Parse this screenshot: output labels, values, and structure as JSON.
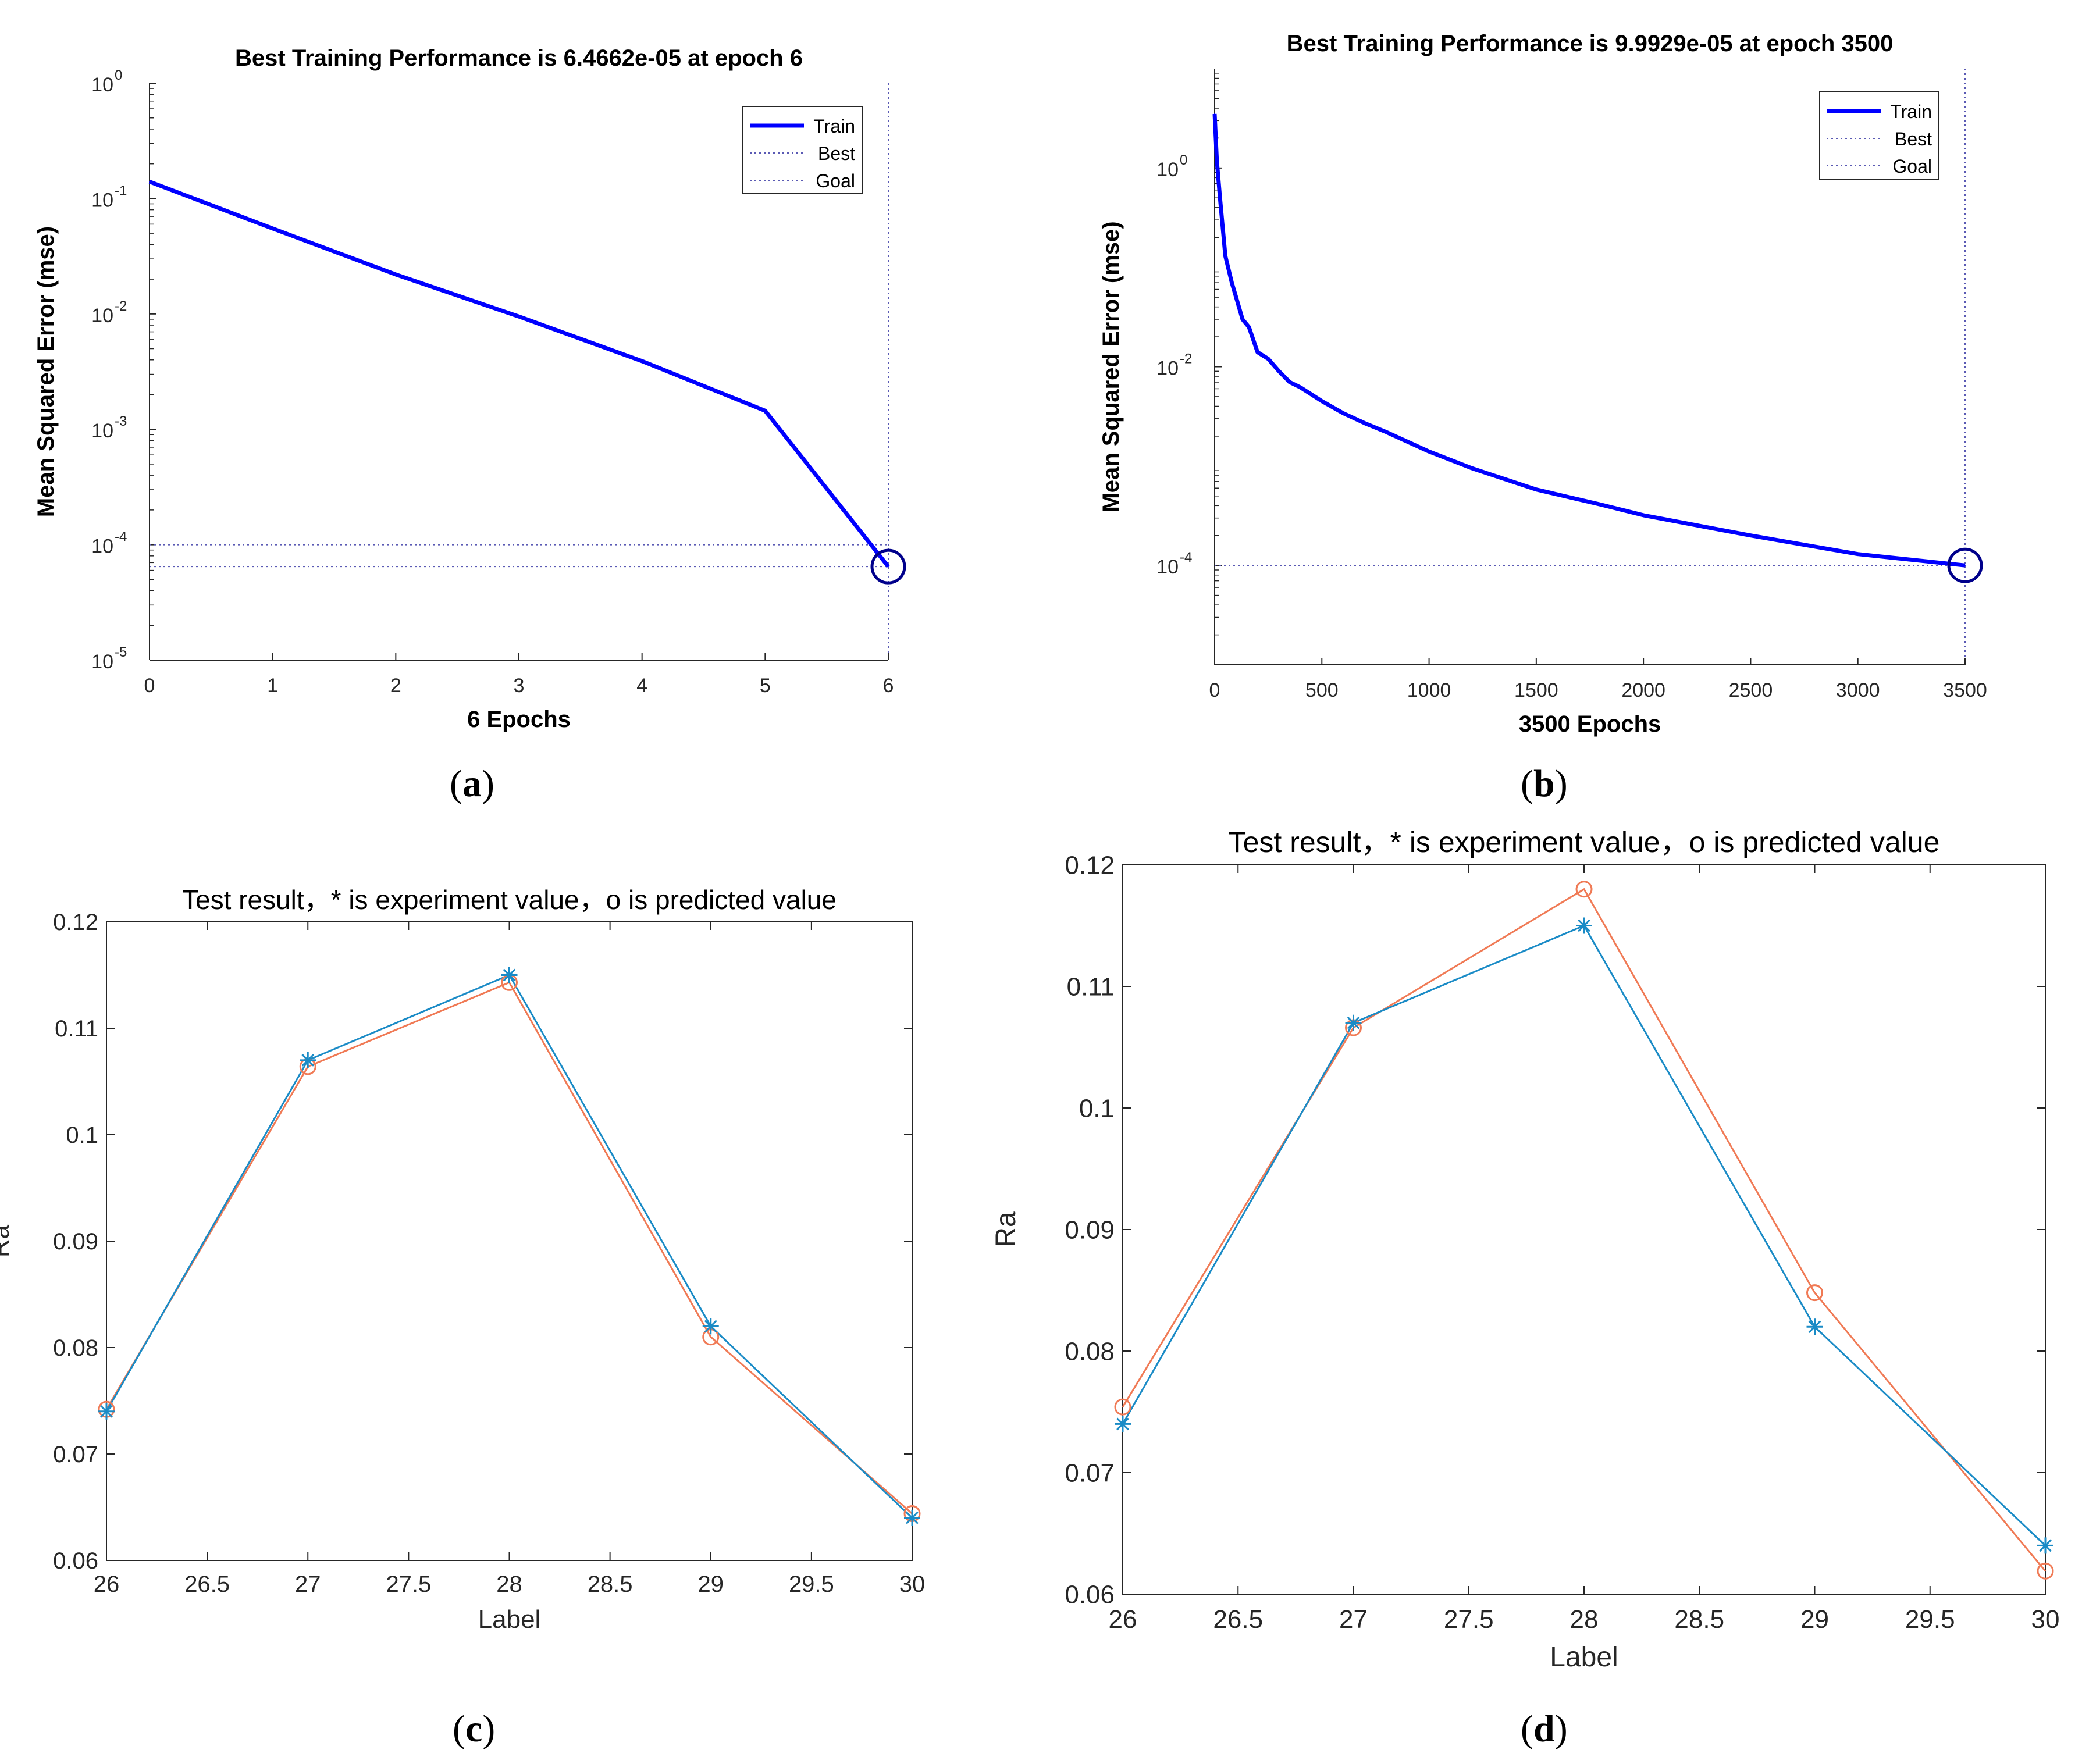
{
  "colors": {
    "train": "#0000ff",
    "best_circle": "#00008b",
    "guide": "#5a5ab4",
    "experiment": "#1a8bc6",
    "predicted": "#f07a55",
    "axis": "#262626",
    "grid": "#d9d9d9"
  },
  "chart_data": [
    {
      "panel": "a",
      "caption": "a",
      "type": "line",
      "title": "Best Training Performance is 6.4662e-05 at epoch 6",
      "xlabel": "6 Epochs",
      "ylabel": "Mean Squared Error  (mse)",
      "xlim": [
        0,
        6
      ],
      "ylim": [
        1e-05,
        1
      ],
      "yscale": "log",
      "xticks": [
        "0",
        "1",
        "2",
        "3",
        "4",
        "5",
        "6"
      ],
      "ytick_bases": [
        "10",
        "10",
        "10",
        "10",
        "10",
        "10"
      ],
      "ytick_exps": [
        "-5",
        "-4",
        "-3",
        "-2",
        "-1",
        "0"
      ],
      "ytick_values": [
        1e-05,
        0.0001,
        0.001,
        0.01,
        0.1,
        1
      ],
      "series": [
        {
          "name": "Train",
          "x": [
            0,
            1,
            2,
            3,
            4,
            5,
            6
          ],
          "y": [
            0.14,
            0.055,
            0.022,
            0.0095,
            0.0039,
            0.00145,
            6.4662e-05
          ]
        }
      ],
      "best_line": 6.4662e-05,
      "goal_line": 0.0001,
      "best_point": {
        "x": 6,
        "y": 6.4662e-05
      },
      "legend": [
        "Train",
        "Best",
        "Goal"
      ],
      "legend_position": "top-right"
    },
    {
      "panel": "b",
      "caption": "b",
      "type": "line",
      "title": "Best Training Performance is 9.9929e-05 at epoch 3500",
      "xlabel": "3500 Epochs",
      "ylabel": "Mean Squared Error  (mse)",
      "xlim": [
        0,
        3500
      ],
      "ylim": [
        1e-05,
        10
      ],
      "yscale": "log",
      "xticks": [
        "0",
        "500",
        "1000",
        "1500",
        "2000",
        "2500",
        "3000",
        "3500"
      ],
      "ytick_bases": [
        "10",
        "10",
        "10"
      ],
      "ytick_exps": [
        "-4",
        "-2",
        "0"
      ],
      "ytick_values": [
        0.0001,
        0.01,
        1
      ],
      "series": [
        {
          "name": "Train",
          "x": [
            0,
            10,
            25,
            50,
            80,
            100,
            130,
            160,
            200,
            250,
            300,
            350,
            400,
            500,
            600,
            700,
            800,
            1000,
            1200,
            1500,
            1800,
            2000,
            2500,
            3000,
            3500
          ],
          "y": [
            3.5,
            1.2,
            0.5,
            0.13,
            0.07,
            0.05,
            0.03,
            0.025,
            0.014,
            0.012,
            0.009,
            0.007,
            0.0062,
            0.0045,
            0.0034,
            0.0027,
            0.0022,
            0.0014,
            0.00095,
            0.00058,
            0.00041,
            0.00032,
            0.0002,
            0.00013,
            9.9929e-05
          ]
        }
      ],
      "best_line": 9.9929e-05,
      "goal_line": 9.9929e-05,
      "best_point": {
        "x": 3500,
        "y": 9.9929e-05
      },
      "legend": [
        "Train",
        "Best",
        "Goal"
      ],
      "legend_position": "top-right"
    },
    {
      "panel": "c",
      "caption": "c",
      "type": "line",
      "title": "Test result，* is experiment value，o is predicted value",
      "xlabel": "Label",
      "ylabel": "Ra",
      "xlim": [
        26,
        30
      ],
      "ylim": [
        0.06,
        0.12
      ],
      "xticks": [
        "26",
        "26.5",
        "27",
        "27.5",
        "28",
        "28.5",
        "29",
        "29.5",
        "30"
      ],
      "yticks": [
        "0.06",
        "0.07",
        "0.08",
        "0.09",
        "0.1",
        "0.11",
        "0.12"
      ],
      "series": [
        {
          "name": "experiment value",
          "marker": "*",
          "x": [
            26,
            27,
            28,
            29,
            30
          ],
          "y": [
            0.074,
            0.107,
            0.115,
            0.082,
            0.064
          ]
        },
        {
          "name": "predicted value",
          "marker": "o",
          "x": [
            26,
            27,
            28,
            29,
            30
          ],
          "y": [
            0.0742,
            0.1064,
            0.1143,
            0.081,
            0.0644
          ]
        }
      ]
    },
    {
      "panel": "d",
      "caption": "d",
      "type": "line",
      "title": "Test result，* is experiment value，o is predicted value",
      "xlabel": "Label",
      "ylabel": "Ra",
      "xlim": [
        26,
        30
      ],
      "ylim": [
        0.06,
        0.12
      ],
      "xticks": [
        "26",
        "26.5",
        "27",
        "27.5",
        "28",
        "28.5",
        "29",
        "29.5",
        "30"
      ],
      "yticks": [
        "0.06",
        "0.07",
        "0.08",
        "0.09",
        "0.1",
        "0.11",
        "0.12"
      ],
      "series": [
        {
          "name": "experiment value",
          "marker": "*",
          "x": [
            26,
            27,
            28,
            29,
            30
          ],
          "y": [
            0.074,
            0.107,
            0.115,
            0.082,
            0.064
          ]
        },
        {
          "name": "predicted value",
          "marker": "o",
          "x": [
            26,
            27,
            28,
            29,
            30
          ],
          "y": [
            0.0754,
            0.1066,
            0.118,
            0.0848,
            0.0619
          ]
        }
      ]
    }
  ]
}
